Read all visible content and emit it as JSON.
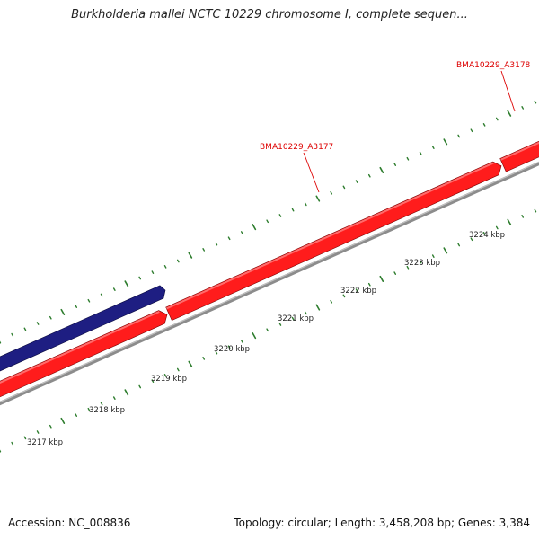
{
  "title": "Burkholderia mallei NCTC 10229 chromosome I, complete sequen...",
  "footer": {
    "accession": "Accession: NC_008836",
    "summary": "Topology: circular; Length: 3,458,208 bp; Genes: 3,384"
  },
  "map": {
    "colors": {
      "forward_cds": "#ff1c1c",
      "reverse_cds": "#1e1e82",
      "backbone": "#8c8c8c",
      "ticks": "#2e7d2e",
      "gene_label": "#dd0000",
      "position_label": "#222222"
    },
    "position_labels": [
      "3217 kbp",
      "3218 kbp",
      "3219 kbp",
      "3220 kbp",
      "3221 kbp",
      "3222 kbp",
      "3223 kbp",
      "3224 kbp"
    ],
    "gene_labels": [
      "BMA10229_A3177",
      "BMA10229_A3178"
    ]
  }
}
